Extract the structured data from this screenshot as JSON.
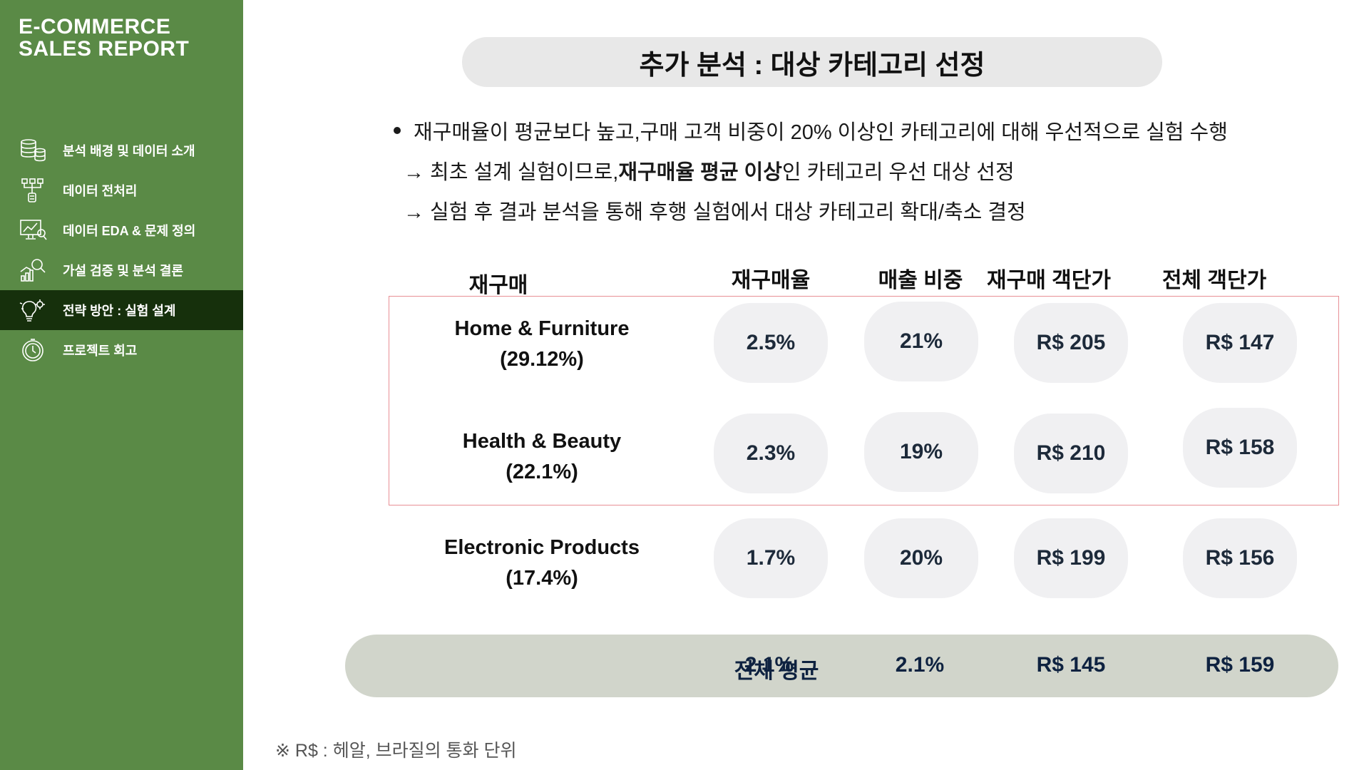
{
  "sidebar": {
    "brand": "E-COMMERCE\nSALES REPORT",
    "items": [
      {
        "label": "분석 배경 및 데이터 소개",
        "icon": "database-icon",
        "active": false
      },
      {
        "label": "데이터 전처리",
        "icon": "data-flow-icon",
        "active": false
      },
      {
        "label": "데이터 EDA & 문제 정의",
        "icon": "analytics-monitor-icon",
        "active": false
      },
      {
        "label": "가설 검증 및 분석 결론",
        "icon": "chart-magnifier-icon",
        "active": false
      },
      {
        "label": "전략 방안 : 실험 설계",
        "icon": "lightbulb-gear-icon",
        "active": true
      },
      {
        "label": "프로젝트 회고",
        "icon": "stopwatch-icon",
        "active": false
      }
    ],
    "colors": {
      "background": "#5a8a46",
      "active": "#16300c"
    }
  },
  "main": {
    "title": "추가 분석 : 대상 카테고리 선정",
    "bullet": "재구매율이 평균보다 높고,구매 고객 비중이 20% 이상인 카테고리에 대해 우선적으로 실험 수행",
    "arrow1": {
      "prefix": "→ 최초 설계 실험이므로, ",
      "bold": "재구매율 평균 이상",
      "suffix": "인 카테고리 우선 대상 선정"
    },
    "arrow2": "→ 실험 후 결과 분석을 통해 후행 실험에서 대상 카테고리 확대/축소 결정"
  },
  "table": {
    "headers": [
      "재구매",
      "재구매율",
      "매출 비중",
      "재구매 객단가",
      "전체 객단가"
    ],
    "rows": [
      {
        "category": "Home & Furniture",
        "share": "(29.12%)",
        "rate": "2.5%",
        "sales": "21%",
        "repurchase_aov": "R$ 205",
        "total_aov": "R$ 147",
        "highlighted": true
      },
      {
        "category": "Health & Beauty",
        "share": "(22.1%)",
        "rate": "2.3%",
        "sales": "19%",
        "repurchase_aov": "R$ 210",
        "total_aov": "R$ 158",
        "highlighted": true
      },
      {
        "category": "Electronic Products",
        "share": "(17.4%)",
        "rate": "1.7%",
        "sales": "20%",
        "repurchase_aov": "R$ 199",
        "total_aov": "R$ 156",
        "highlighted": false
      }
    ],
    "average": {
      "label": "전체 평균",
      "rate": "2.1%",
      "sales": "2.1%",
      "repurchase_aov": "R$ 145",
      "total_aov": "R$ 159"
    },
    "highlight_color": "#e88f95"
  },
  "footnote": "※ R$  : 헤알, 브라질의 통화 단위"
}
